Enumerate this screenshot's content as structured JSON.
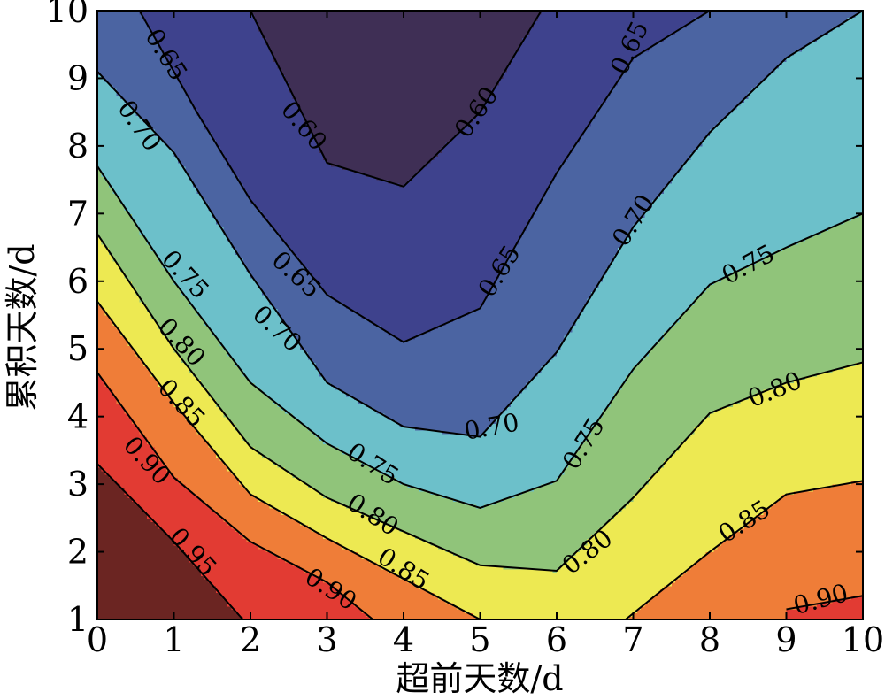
{
  "chart_data": {
    "type": "contour",
    "xlabel": "超前天数/d",
    "ylabel": "累积天数/d",
    "x": [
      0,
      1,
      2,
      3,
      4,
      5,
      6,
      7,
      8,
      9,
      10
    ],
    "y": [
      1,
      2,
      3,
      4,
      5,
      6,
      7,
      8,
      9,
      10
    ],
    "xlim": [
      0,
      10
    ],
    "ylim": [
      1,
      10
    ],
    "x_ticks": [
      "0",
      "1",
      "2",
      "3",
      "4",
      "5",
      "6",
      "7",
      "8",
      "9",
      "10"
    ],
    "y_ticks": [
      "1",
      "2",
      "3",
      "4",
      "5",
      "6",
      "7",
      "8",
      "9",
      "10"
    ],
    "levels": [
      0.6,
      0.65,
      0.7,
      0.75,
      0.8,
      0.85,
      0.9,
      0.95
    ],
    "fill_colors": [
      "#3f2f55",
      "#3e428d",
      "#4b64a2",
      "#6cc0ca",
      "#90c47a",
      "#ede952",
      "#ef7d38",
      "#e23b33",
      "#6b2522"
    ],
    "contour_lines": [
      {
        "level": 0.6,
        "points": [
          [
            2.0,
            10.0
          ],
          [
            3.0,
            7.75
          ],
          [
            4.0,
            7.4
          ],
          [
            5.0,
            8.5
          ],
          [
            5.8,
            10.0
          ]
        ]
      },
      {
        "level": 0.65,
        "points": [
          [
            0.55,
            10.0
          ],
          [
            1.3,
            8.5
          ],
          [
            2.0,
            7.2
          ],
          [
            3.0,
            5.8
          ],
          [
            4.0,
            5.1
          ],
          [
            5.0,
            5.6
          ],
          [
            6.0,
            7.6
          ],
          [
            7.0,
            9.3
          ],
          [
            8.0,
            10.0
          ]
        ]
      },
      {
        "level": 0.7,
        "points": [
          [
            0.0,
            9.1
          ],
          [
            1.0,
            7.9
          ],
          [
            2.0,
            6.1
          ],
          [
            3.0,
            4.5
          ],
          [
            4.0,
            3.85
          ],
          [
            5.0,
            3.7
          ],
          [
            6.0,
            4.95
          ],
          [
            7.0,
            6.8
          ],
          [
            8.0,
            8.2
          ],
          [
            9.0,
            9.3
          ],
          [
            10.0,
            10.0
          ]
        ]
      },
      {
        "level": 0.75,
        "points": [
          [
            0.0,
            7.7
          ],
          [
            1.0,
            6.0
          ],
          [
            2.0,
            4.5
          ],
          [
            3.0,
            3.6
          ],
          [
            4.0,
            3.0
          ],
          [
            5.0,
            2.65
          ],
          [
            6.0,
            3.05
          ],
          [
            7.0,
            4.7
          ],
          [
            8.0,
            5.95
          ],
          [
            9.0,
            6.5
          ],
          [
            10.0,
            7.0
          ]
        ]
      },
      {
        "level": 0.8,
        "points": [
          [
            0.0,
            6.7
          ],
          [
            1.0,
            5.0
          ],
          [
            2.0,
            3.55
          ],
          [
            3.0,
            2.8
          ],
          [
            4.0,
            2.3
          ],
          [
            5.0,
            1.8
          ],
          [
            6.0,
            1.72
          ],
          [
            7.0,
            2.8
          ],
          [
            8.0,
            4.05
          ],
          [
            9.0,
            4.5
          ],
          [
            10.0,
            4.8
          ]
        ]
      },
      {
        "level": 0.85,
        "points": [
          [
            0.0,
            5.7
          ],
          [
            1.0,
            4.2
          ],
          [
            2.0,
            2.85
          ],
          [
            3.0,
            2.2
          ],
          [
            4.0,
            1.6
          ],
          [
            5.0,
            1.0
          ]
        ]
      },
      {
        "level": 0.85,
        "points": [
          [
            6.9,
            1.0
          ],
          [
            8.0,
            2.0
          ],
          [
            9.0,
            2.85
          ],
          [
            10.0,
            3.05
          ]
        ]
      },
      {
        "level": 0.9,
        "points": [
          [
            0.0,
            4.65
          ],
          [
            1.0,
            3.1
          ],
          [
            2.0,
            2.15
          ],
          [
            3.0,
            1.55
          ],
          [
            3.6,
            1.0
          ]
        ]
      },
      {
        "level": 0.9,
        "points": [
          [
            9.0,
            1.15
          ],
          [
            10.0,
            1.35
          ]
        ]
      },
      {
        "level": 0.95,
        "points": [
          [
            0.0,
            3.3
          ],
          [
            1.0,
            2.15
          ],
          [
            1.9,
            1.0
          ]
        ]
      }
    ],
    "contour_labels": [
      {
        "text": "0.60",
        "x": 2.7,
        "y": 8.3,
        "angle": 50
      },
      {
        "text": "0.60",
        "x": 4.95,
        "y": 8.5,
        "angle": -55
      },
      {
        "text": "0.65",
        "x": 0.9,
        "y": 9.35,
        "angle": 58
      },
      {
        "text": "0.65",
        "x": 6.95,
        "y": 9.45,
        "angle": -65
      },
      {
        "text": "0.65",
        "x": 2.6,
        "y": 6.1,
        "angle": 42
      },
      {
        "text": "0.65",
        "x": 5.25,
        "y": 6.15,
        "angle": -58
      },
      {
        "text": "0.70",
        "x": 0.55,
        "y": 8.3,
        "angle": 55
      },
      {
        "text": "0.70",
        "x": 2.35,
        "y": 5.3,
        "angle": 42
      },
      {
        "text": "0.70",
        "x": 5.15,
        "y": 3.85,
        "angle": -10
      },
      {
        "text": "0.70",
        "x": 7.0,
        "y": 6.9,
        "angle": -58
      },
      {
        "text": "0.75",
        "x": 1.15,
        "y": 6.1,
        "angle": 47
      },
      {
        "text": "0.75",
        "x": 3.6,
        "y": 3.3,
        "angle": 33
      },
      {
        "text": "0.75",
        "x": 6.35,
        "y": 3.6,
        "angle": -58
      },
      {
        "text": "0.75",
        "x": 8.5,
        "y": 6.25,
        "angle": -28
      },
      {
        "text": "0.80",
        "x": 1.1,
        "y": 5.1,
        "angle": 47
      },
      {
        "text": "0.80",
        "x": 3.6,
        "y": 2.55,
        "angle": 33
      },
      {
        "text": "0.80",
        "x": 6.4,
        "y": 2.0,
        "angle": -38
      },
      {
        "text": "0.80",
        "x": 8.85,
        "y": 4.4,
        "angle": -22
      },
      {
        "text": "0.85",
        "x": 1.1,
        "y": 4.2,
        "angle": 47
      },
      {
        "text": "0.85",
        "x": 4.0,
        "y": 1.75,
        "angle": 33
      },
      {
        "text": "0.85",
        "x": 8.45,
        "y": 2.45,
        "angle": -33
      },
      {
        "text": "0.90",
        "x": 0.65,
        "y": 3.35,
        "angle": 47
      },
      {
        "text": "0.90",
        "x": 3.05,
        "y": 1.45,
        "angle": 33
      },
      {
        "text": "0.90",
        "x": 9.45,
        "y": 1.3,
        "angle": -15
      },
      {
        "text": "0.95",
        "x": 1.25,
        "y": 2.0,
        "angle": 47
      }
    ]
  }
}
